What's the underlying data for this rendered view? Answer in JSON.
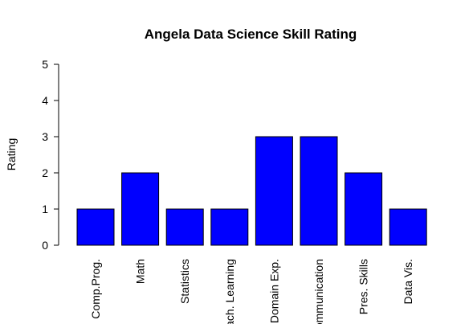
{
  "chart_data": {
    "type": "bar",
    "title": "Angela Data Science Skill Rating",
    "xlabel": "",
    "ylabel": "Rating",
    "categories": [
      "Comp.Prog.",
      "Math",
      "Statistics",
      "Mach. Learning",
      "Domain Exp.",
      "Communication",
      "Pres. Skills",
      "Data Vis."
    ],
    "values": [
      1,
      2,
      1,
      1,
      3,
      3,
      2,
      1
    ],
    "ylim": [
      0,
      5
    ],
    "yticks": [
      "0",
      "1",
      "2",
      "3",
      "4",
      "5"
    ],
    "grid": false,
    "legend": "none",
    "colors": {
      "bar_fill": "#0000ff",
      "bar_stroke": "#000000",
      "axis": "#000000",
      "background": "#ffffff"
    }
  }
}
